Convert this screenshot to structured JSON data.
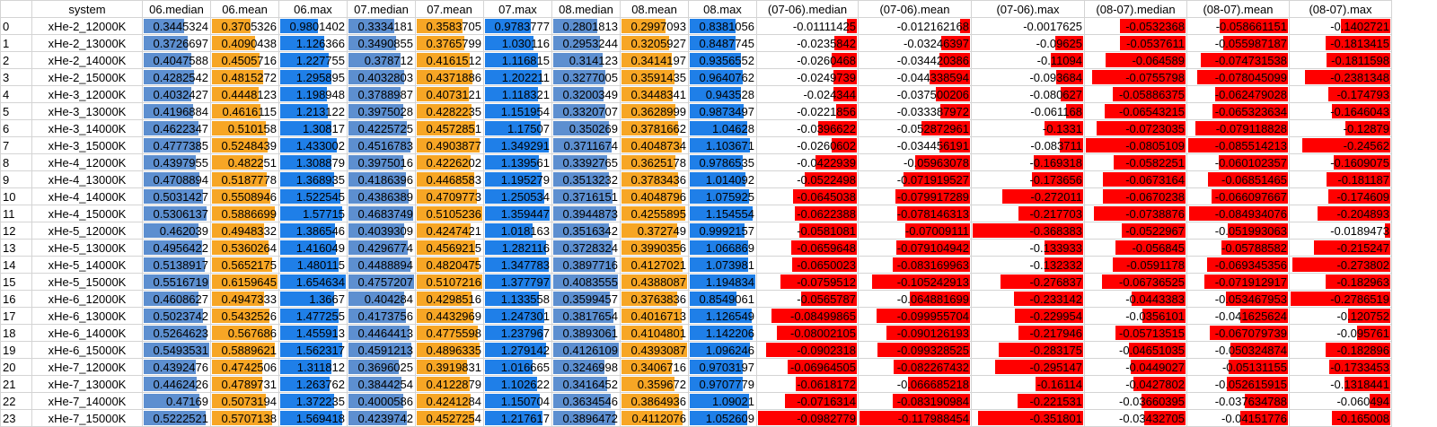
{
  "colors": {
    "mean_bar": "#f7a625",
    "median_bar": "#5d8fd0",
    "max_bar": "#1f7fe8",
    "diff_bar": "#ff0000",
    "grid": "#d4d4d4"
  },
  "columns": [
    "system",
    "06.median",
    "06.mean",
    "06.max",
    "07.median",
    "07.mean",
    "07.max",
    "08.median",
    "08.mean",
    "08.max",
    "(07-06).median",
    "(07-06).mean",
    "(07-06).max",
    "(08-07).median",
    "(08-07).mean",
    "(08-07).max"
  ],
  "rows": [
    {
      "idx": "0",
      "system": "xHe-2_12000K",
      "values": [
        "0.3445324",
        "0.3705326",
        "0.9801402",
        "0.3334181",
        "0.3583705",
        "0.9783777",
        "0.2801813",
        "0.2997093",
        "0.8381056",
        "-0.01111425",
        "-0.012162168",
        "-0.0017625",
        "-0.0532368",
        "-0.058661151",
        "-0.1402721"
      ]
    },
    {
      "idx": "1",
      "system": "xHe-2_13000K",
      "values": [
        "0.3726697",
        "0.4090438",
        "1.126366",
        "0.3490855",
        "0.3765799",
        "1.030116",
        "0.2953244",
        "0.3205927",
        "0.8487745",
        "-0.0235842",
        "-0.03246397",
        "-0.09625",
        "-0.0537611",
        "-0.055987187",
        "-0.1813415"
      ]
    },
    {
      "idx": "2",
      "system": "xHe-2_14000K",
      "values": [
        "0.4047588",
        "0.4505716",
        "1.227755",
        "0.378712",
        "0.4161512",
        "1.116815",
        "0.314123",
        "0.3414197",
        "0.9356552",
        "-0.0260468",
        "-0.034420386",
        "-0.11094",
        "-0.064589",
        "-0.074731538",
        "-0.1811598"
      ]
    },
    {
      "idx": "3",
      "system": "xHe-2_15000K",
      "values": [
        "0.4282542",
        "0.4815272",
        "1.295895",
        "0.4032803",
        "0.4371886",
        "1.202211",
        "0.3277005",
        "0.3591435",
        "0.9640762",
        "-0.0249739",
        "-0.044338594",
        "-0.093684",
        "-0.0755798",
        "-0.078045099",
        "-0.2381348"
      ]
    },
    {
      "idx": "4",
      "system": "xHe-3_12000K",
      "values": [
        "0.4032427",
        "0.4448123",
        "1.198948",
        "0.3788987",
        "0.4073121",
        "1.118321",
        "0.3200349",
        "0.3448341",
        "0.943528",
        "-0.024344",
        "-0.037500206",
        "-0.080627",
        "-0.05886375",
        "-0.062479028",
        "-0.174793"
      ]
    },
    {
      "idx": "5",
      "system": "xHe-3_13000K",
      "values": [
        "0.4196884",
        "0.4616115",
        "1.213122",
        "0.3975028",
        "0.4282235",
        "1.151954",
        "0.3320707",
        "0.3628999",
        "0.9873497",
        "-0.0221856",
        "-0.033387972",
        "-0.061168",
        "-0.06543215",
        "-0.065323634",
        "-0.1646043"
      ]
    },
    {
      "idx": "6",
      "system": "xHe-3_14000K",
      "values": [
        "0.4622347",
        "0.510158",
        "1.30817",
        "0.4225725",
        "0.4572851",
        "1.17507",
        "0.350269",
        "0.3781662",
        "1.04628",
        "-0.0396622",
        "-0.052872961",
        "-0.1331",
        "-0.0723035",
        "-0.079118828",
        "-0.12879"
      ]
    },
    {
      "idx": "7",
      "system": "xHe-3_15000K",
      "values": [
        "0.4777385",
        "0.5248439",
        "1.433002",
        "0.4516783",
        "0.4903877",
        "1.349291",
        "0.3711674",
        "0.4048734",
        "1.103671",
        "-0.0260602",
        "-0.034456191",
        "-0.083711",
        "-0.0805109",
        "-0.085514213",
        "-0.24562"
      ]
    },
    {
      "idx": "8",
      "system": "xHe-4_12000K",
      "values": [
        "0.4397955",
        "0.482251",
        "1.308879",
        "0.3975016",
        "0.4226202",
        "1.139561",
        "0.3392765",
        "0.3625178",
        "0.9786535",
        "-0.0422939",
        "-0.05963078",
        "-0.169318",
        "-0.0582251",
        "-0.060102357",
        "-0.1609075"
      ]
    },
    {
      "idx": "9",
      "system": "xHe-4_13000K",
      "values": [
        "0.4708894",
        "0.5187778",
        "1.368935",
        "0.4186396",
        "0.4468583",
        "1.195279",
        "0.3513232",
        "0.3783436",
        "1.014092",
        "-0.0522498",
        "-0.071919527",
        "-0.173656",
        "-0.0673164",
        "-0.06851465",
        "-0.181187"
      ]
    },
    {
      "idx": "10",
      "system": "xHe-4_14000K",
      "values": [
        "0.5031427",
        "0.5508946",
        "1.522545",
        "0.4386389",
        "0.4709773",
        "1.250534",
        "0.3716151",
        "0.4048796",
        "1.075925",
        "-0.0645038",
        "-0.079917289",
        "-0.272011",
        "-0.0670238",
        "-0.066097667",
        "-0.174609"
      ]
    },
    {
      "idx": "11",
      "system": "xHe-4_15000K",
      "values": [
        "0.5306137",
        "0.5886699",
        "1.57715",
        "0.4683749",
        "0.5105236",
        "1.359447",
        "0.3944873",
        "0.4255895",
        "1.154554",
        "-0.0622388",
        "-0.078146313",
        "-0.217703",
        "-0.0738876",
        "-0.084934076",
        "-0.204893"
      ]
    },
    {
      "idx": "12",
      "system": "xHe-5_12000K",
      "values": [
        "0.462039",
        "0.4948332",
        "1.386546",
        "0.4039309",
        "0.4247421",
        "1.018163",
        "0.3516342",
        "0.372749",
        "0.9992157",
        "-0.0581081",
        "-0.07009111",
        "-0.368383",
        "-0.0522967",
        "-0.051993063",
        "-0.0189473"
      ]
    },
    {
      "idx": "13",
      "system": "xHe-5_13000K",
      "values": [
        "0.4956422",
        "0.5360264",
        "1.416049",
        "0.4296774",
        "0.4569215",
        "1.282116",
        "0.3728324",
        "0.3990356",
        "1.066869",
        "-0.0659648",
        "-0.079104942",
        "-0.133933",
        "-0.056845",
        "-0.05788582",
        "-0.215247"
      ]
    },
    {
      "idx": "14",
      "system": "xHe-5_14000K",
      "values": [
        "0.5138917",
        "0.5652175",
        "1.480115",
        "0.4488894",
        "0.4820475",
        "1.347783",
        "0.3897716",
        "0.4127021",
        "1.073981",
        "-0.0650023",
        "-0.083169963",
        "-0.132332",
        "-0.0591178",
        "-0.069345356",
        "-0.273802"
      ]
    },
    {
      "idx": "15",
      "system": "xHe-5_15000K",
      "values": [
        "0.5516719",
        "0.6159645",
        "1.654634",
        "0.4757207",
        "0.5107216",
        "1.377797",
        "0.4083555",
        "0.4388087",
        "1.194834",
        "-0.0759512",
        "-0.105242913",
        "-0.276837",
        "-0.06736525",
        "-0.071912917",
        "-0.182963"
      ]
    },
    {
      "idx": "16",
      "system": "xHe-6_12000K",
      "values": [
        "0.4608627",
        "0.4947333",
        "1.3667",
        "0.404284",
        "0.4298516",
        "1.133558",
        "0.3599457",
        "0.3763836",
        "0.8549061",
        "-0.0565787",
        "-0.064881699",
        "-0.233142",
        "-0.0443383",
        "-0.053467953",
        "-0.2786519"
      ]
    },
    {
      "idx": "17",
      "system": "xHe-6_13000K",
      "values": [
        "0.5023742",
        "0.5432526",
        "1.477255",
        "0.4173756",
        "0.4432969",
        "1.247301",
        "0.3817654",
        "0.4016713",
        "1.126549",
        "-0.08499865",
        "-0.099955704",
        "-0.229954",
        "-0.0356101",
        "-0.041625624",
        "-0.120752"
      ]
    },
    {
      "idx": "18",
      "system": "xHe-6_14000K",
      "values": [
        "0.5264623",
        "0.567686",
        "1.455913",
        "0.4464413",
        "0.4775598",
        "1.237967",
        "0.3893061",
        "0.4104801",
        "1.142206",
        "-0.08002105",
        "-0.090126193",
        "-0.217946",
        "-0.05713515",
        "-0.067079739",
        "-0.095761"
      ]
    },
    {
      "idx": "19",
      "system": "xHe-6_15000K",
      "values": [
        "0.5493531",
        "0.5889621",
        "1.562317",
        "0.4591213",
        "0.4896335",
        "1.279142",
        "0.4126109",
        "0.4393087",
        "1.096246",
        "-0.0902318",
        "-0.099328525",
        "-0.283175",
        "-0.04651035",
        "-0.050324874",
        "-0.182896"
      ]
    },
    {
      "idx": "20",
      "system": "xHe-7_12000K",
      "values": [
        "0.4392476",
        "0.4742506",
        "1.311812",
        "0.3696025",
        "0.3919831",
        "1.016665",
        "0.3246998",
        "0.3406716",
        "0.9703197",
        "-0.06964505",
        "-0.082267432",
        "-0.295147",
        "-0.0449027",
        "-0.05131155",
        "-0.1733453"
      ]
    },
    {
      "idx": "21",
      "system": "xHe-7_13000K",
      "values": [
        "0.4462426",
        "0.4789731",
        "1.263762",
        "0.3844254",
        "0.4122879",
        "1.102622",
        "0.3416452",
        "0.359672",
        "0.9707779",
        "-0.0618172",
        "-0.066685218",
        "-0.16114",
        "-0.0427802",
        "-0.052615915",
        "-0.1318441"
      ]
    },
    {
      "idx": "22",
      "system": "xHe-7_14000K",
      "values": [
        "0.47169",
        "0.5073194",
        "1.372235",
        "0.4000586",
        "0.4241284",
        "1.150704",
        "0.3634546",
        "0.3864936",
        "1.09021",
        "-0.0716314",
        "-0.083190984",
        "-0.221531",
        "-0.03660395",
        "-0.037634788",
        "-0.060494"
      ]
    },
    {
      "idx": "23",
      "system": "xHe-7_15000K",
      "values": [
        "0.5222521",
        "0.5707138",
        "1.569418",
        "0.4239742",
        "0.4527254",
        "1.217617",
        "0.3896472",
        "0.4112076",
        "1.052609",
        "-0.0982779",
        "-0.117988454",
        "-0.351801",
        "-0.03432705",
        "-0.04151776",
        "-0.165008"
      ]
    }
  ]
}
